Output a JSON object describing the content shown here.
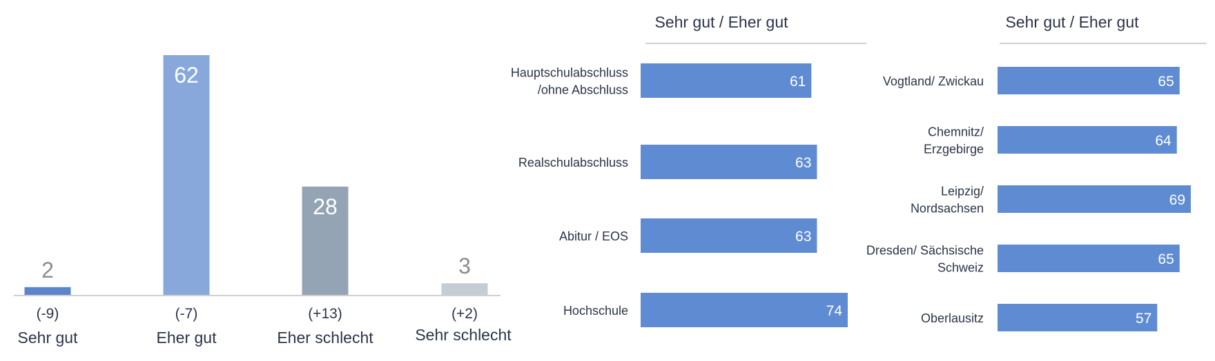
{
  "chart_data": [
    {
      "type": "bar",
      "categories": [
        "Sehr gut",
        "Eher gut",
        "Eher schlecht",
        "Sehr schlecht"
      ],
      "values": [
        2,
        62,
        28,
        3
      ],
      "changes": [
        "(-9)",
        "(-7)",
        "(+13)",
        "(+2)"
      ],
      "colors": [
        "#5b84cc",
        "#88a8dc",
        "#94a4b4",
        "#c4ccd4"
      ],
      "value_label_colors": [
        "#8c8c8c",
        "#ffffff",
        "#ffffff",
        "#8c8c8c"
      ],
      "ylim": [
        0,
        62
      ]
    },
    {
      "type": "bar",
      "orientation": "horizontal",
      "title": "Sehr gut  /  Eher  gut",
      "categories": [
        "Hauptschulabschluss\n/ohne Abschluss",
        "Realschulabschluss",
        "Abitur / EOS",
        "Hochschule"
      ],
      "values": [
        61,
        63,
        63,
        74
      ],
      "color": "#5f8bd3",
      "xlim": [
        0,
        74
      ]
    },
    {
      "type": "bar",
      "orientation": "horizontal",
      "title": "Sehr gut  /  Eher gut",
      "categories": [
        "Vogtland/ Zwickau",
        "Chemnitz/\nErzgebirge",
        "Leipzig/\nNordsachsen",
        "Dresden/ Sächsische\nSchweiz",
        "Oberlausitz"
      ],
      "values": [
        65,
        64,
        69,
        65,
        57
      ],
      "color": "#5f8bd3",
      "xlim": [
        0,
        69
      ]
    }
  ]
}
